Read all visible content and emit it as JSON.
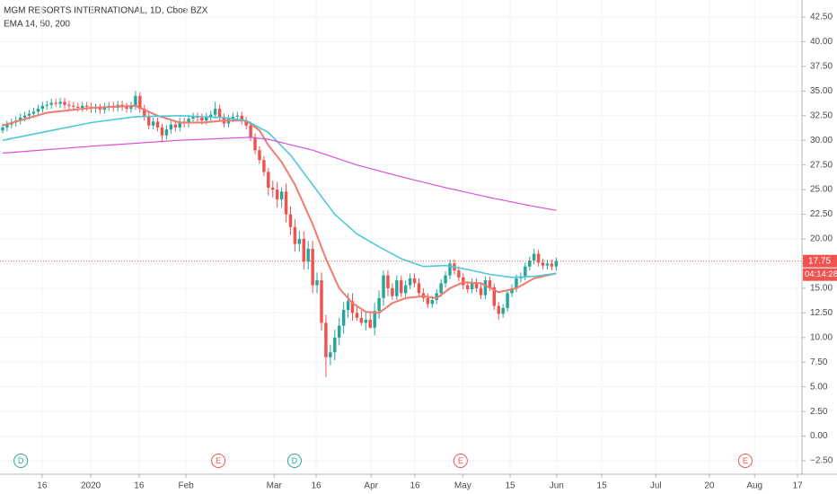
{
  "chart_data": {
    "type": "candlestick",
    "title": "MGM RESORTS INTERNATIONAL, 1D, Cboe BZX",
    "subtitle": "EMA 14, 50, 200",
    "up_color": "#26a69a",
    "down_color": "#ef5350",
    "open": [
      31.0,
      31.3,
      31.6,
      31.8,
      32.0,
      32.3,
      32.5,
      32.7,
      32.9,
      33.2,
      33.5,
      33.6,
      33.8,
      33.7,
      33.9,
      33.6,
      33.5,
      33.4,
      33.3,
      33.5,
      33.4,
      33.2,
      33.3,
      33.1,
      33.4,
      33.5,
      33.3,
      33.6,
      33.4,
      33.2,
      33.5,
      34.5,
      33.2,
      32.4,
      31.5,
      31.9,
      31.3,
      30.5,
      31.1,
      31.6,
      31.3,
      31.9,
      31.7,
      32.2,
      32.4,
      32.3,
      32.0,
      32.4,
      32.6,
      33.2,
      32.3,
      31.7,
      32.2,
      32.4,
      32.5,
      32.0,
      31.5,
      30.3,
      29.0,
      28.0,
      26.8,
      25.2,
      25.0,
      24.0,
      24.8,
      22.5,
      21.2,
      19.5,
      20.0,
      17.7,
      19.0,
      15.3,
      15.8,
      11.5,
      8.0,
      8.5,
      10.0,
      11.2,
      12.8,
      13.7,
      12.5,
      12.0,
      11.5,
      11.8,
      11.0,
      12.7,
      14.0,
      16.3,
      15.0,
      14.2,
      15.8,
      14.5,
      15.3,
      16.0,
      15.5,
      14.5,
      14.0,
      13.4,
      13.8,
      14.5,
      15.5,
      16.3,
      17.5,
      16.8,
      16.1,
      15.3,
      14.9,
      15.6,
      15.0,
      14.3,
      15.8,
      15.1,
      13.2,
      12.4,
      13.0,
      14.5,
      15.0,
      16.0,
      16.2,
      17.2,
      17.8,
      18.5,
      17.6,
      17.3,
      17.5,
      17.2
    ],
    "high": [
      31.7,
      32.0,
      32.2,
      32.4,
      32.7,
      32.9,
      33.1,
      33.3,
      33.6,
      33.9,
      34.0,
      34.2,
      34.2,
      34.3,
      34.3,
      34.0,
      33.9,
      33.8,
      33.9,
      33.9,
      33.8,
      33.7,
      33.7,
      33.8,
      33.9,
      33.9,
      34.0,
      34.0,
      33.8,
      33.9,
      35.0,
      34.9,
      33.6,
      32.8,
      32.3,
      32.3,
      31.7,
      31.5,
      32.0,
      32.0,
      32.3,
      32.3,
      32.6,
      32.8,
      32.8,
      32.7,
      32.8,
      33.0,
      33.9,
      33.6,
      32.7,
      32.6,
      32.8,
      32.9,
      32.9,
      32.4,
      31.9,
      30.7,
      29.4,
      28.4,
      27.2,
      25.9,
      25.8,
      25.2,
      25.6,
      23.3,
      22.0,
      20.8,
      20.8,
      19.8,
      19.8,
      16.6,
      16.6,
      12.3,
      9.3,
      10.8,
      12.0,
      13.6,
      14.5,
      14.5,
      13.3,
      12.8,
      12.6,
      12.6,
      13.5,
      14.8,
      16.8,
      16.8,
      15.5,
      16.3,
      16.3,
      15.8,
      16.5,
      16.5,
      16.0,
      15.0,
      14.5,
      14.2,
      14.9,
      15.9,
      16.7,
      17.9,
      17.9,
      17.2,
      16.5,
      15.7,
      16.0,
      16.0,
      15.4,
      16.2,
      16.2,
      15.5,
      13.6,
      13.4,
      14.9,
      15.4,
      16.4,
      16.6,
      17.6,
      18.2,
      19.0,
      18.9,
      18.0,
      17.9,
      17.9,
      18.1
    ],
    "low": [
      30.7,
      30.9,
      31.2,
      31.4,
      31.6,
      31.9,
      32.1,
      32.3,
      32.5,
      32.8,
      33.1,
      33.2,
      33.4,
      33.3,
      33.2,
      33.1,
      33.0,
      32.9,
      32.9,
      33.0,
      32.8,
      32.8,
      32.7,
      32.7,
      33.0,
      32.9,
      32.9,
      33.0,
      32.8,
      32.8,
      33.1,
      32.8,
      32.0,
      31.1,
      31.1,
      30.9,
      29.8,
      30.1,
      30.7,
      30.9,
      30.9,
      31.3,
      31.3,
      31.8,
      31.9,
      31.6,
      31.6,
      32.0,
      32.2,
      31.9,
      31.3,
      31.3,
      31.8,
      32.0,
      31.6,
      31.1,
      29.9,
      28.6,
      27.6,
      26.4,
      24.4,
      24.2,
      23.2,
      23.2,
      21.7,
      20.4,
      18.7,
      18.7,
      16.9,
      16.9,
      14.5,
      14.5,
      10.7,
      6.0,
      7.2,
      7.7,
      9.2,
      10.4,
      12.0,
      11.7,
      11.7,
      11.2,
      10.7,
      10.9,
      10.2,
      11.9,
      13.2,
      14.2,
      13.8,
      13.8,
      14.1,
      14.1,
      14.9,
      15.1,
      14.1,
      13.6,
      13.0,
      13.0,
      13.4,
      14.1,
      15.1,
      15.9,
      16.4,
      15.7,
      14.9,
      14.5,
      14.5,
      14.6,
      13.9,
      13.9,
      14.7,
      12.8,
      11.8,
      12.0,
      12.6,
      14.1,
      14.6,
      15.6,
      15.8,
      16.8,
      17.4,
      17.2,
      16.9,
      16.9,
      16.8,
      16.8
    ],
    "close": [
      31.3,
      31.6,
      31.8,
      32.0,
      32.3,
      32.5,
      32.7,
      32.9,
      33.2,
      33.5,
      33.6,
      33.8,
      33.7,
      33.9,
      33.6,
      33.5,
      33.4,
      33.3,
      33.5,
      33.4,
      33.2,
      33.3,
      33.1,
      33.4,
      33.5,
      33.3,
      33.6,
      33.4,
      33.2,
      33.5,
      34.5,
      33.2,
      32.4,
      31.5,
      31.9,
      31.3,
      30.5,
      31.1,
      31.6,
      31.3,
      31.9,
      31.7,
      32.2,
      32.4,
      32.3,
      32.0,
      32.4,
      32.6,
      33.2,
      32.3,
      31.7,
      32.2,
      32.4,
      32.5,
      32.0,
      31.5,
      30.3,
      29.0,
      28.0,
      26.8,
      25.2,
      25.0,
      24.0,
      24.8,
      22.5,
      21.2,
      19.5,
      20.0,
      17.7,
      19.0,
      15.3,
      15.8,
      11.5,
      8.0,
      8.5,
      10.0,
      11.2,
      12.8,
      13.7,
      12.5,
      12.0,
      11.5,
      11.8,
      11.0,
      12.7,
      14.0,
      16.3,
      15.0,
      14.2,
      15.8,
      14.5,
      15.3,
      16.0,
      15.5,
      14.5,
      14.0,
      13.4,
      13.8,
      14.5,
      15.5,
      16.3,
      17.5,
      16.8,
      16.1,
      15.3,
      14.9,
      15.6,
      15.0,
      14.3,
      15.8,
      15.1,
      13.2,
      12.4,
      13.0,
      14.5,
      15.0,
      16.0,
      16.2,
      17.2,
      17.8,
      18.5,
      17.6,
      17.3,
      17.5,
      17.2,
      17.75
    ],
    "lines": [
      {
        "color": "#f07b6e",
        "x": [
          0,
          10,
          20,
          30,
          35,
          40,
          45,
          50,
          55,
          58,
          60,
          63,
          66,
          70,
          73,
          76,
          79,
          82,
          85,
          88,
          91,
          95,
          98,
          101,
          104,
          108,
          112,
          116,
          120,
          125
        ],
        "values": [
          31.5,
          32.8,
          33.3,
          33.5,
          32.5,
          31.8,
          31.8,
          32.0,
          32.0,
          31.0,
          29.5,
          27.8,
          25.5,
          21.5,
          18.0,
          15.0,
          13.5,
          12.6,
          12.5,
          13.5,
          14.0,
          14.2,
          14.0,
          15.0,
          15.6,
          15.5,
          14.6,
          15.0,
          16.0,
          16.5
        ]
      },
      {
        "color": "#4fc9d6",
        "x": [
          0,
          10,
          20,
          30,
          40,
          50,
          55,
          60,
          65,
          70,
          75,
          80,
          85,
          90,
          95,
          100,
          105,
          110,
          115,
          120,
          125
        ],
        "values": [
          30.0,
          30.9,
          31.8,
          32.4,
          32.5,
          32.3,
          32.0,
          30.8,
          28.5,
          25.5,
          22.5,
          20.5,
          19.2,
          18.0,
          17.2,
          17.3,
          16.9,
          16.4,
          16.1,
          16.2,
          16.5
        ]
      },
      {
        "color": "#d94fd8",
        "x": [
          0,
          20,
          40,
          56,
          60,
          70,
          80,
          90,
          100,
          110,
          120,
          125
        ],
        "values": [
          28.7,
          29.4,
          30.0,
          30.3,
          30.1,
          29.0,
          27.5,
          26.3,
          25.2,
          24.2,
          23.3,
          22.9
        ]
      }
    ],
    "last_price": 17.75,
    "countdown": "04:14:28",
    "events": [
      {
        "x": 4.1,
        "label": "D",
        "color": "#26a69a"
      },
      {
        "x": 48.7,
        "label": "E",
        "color": "#ef5350"
      },
      {
        "x": 65.9,
        "label": "D",
        "color": "#26a69a"
      },
      {
        "x": 103.4,
        "label": "E",
        "color": "#ef5350"
      },
      {
        "x": 167.7,
        "label": "E",
        "color": "#ef5350"
      }
    ],
    "xlim": [
      -0.6,
      180.5
    ],
    "xticks": [
      {
        "value": 8.9,
        "label": "16"
      },
      {
        "value": 19.9,
        "label": "2020"
      },
      {
        "value": 30.8,
        "label": "16"
      },
      {
        "value": 41.4,
        "label": "Feb"
      },
      {
        "value": 61.3,
        "label": "Mar"
      },
      {
        "value": 70.8,
        "label": "16"
      },
      {
        "value": 83.2,
        "label": "Apr"
      },
      {
        "value": 93.1,
        "label": "16"
      },
      {
        "value": 103.9,
        "label": "May"
      },
      {
        "value": 114.6,
        "label": "15"
      },
      {
        "value": 125.1,
        "label": "Jun"
      },
      {
        "value": 135.3,
        "label": "15"
      },
      {
        "value": 147.5,
        "label": "Jul"
      },
      {
        "value": 159.6,
        "label": "20"
      },
      {
        "value": 169.8,
        "label": "Aug"
      },
      {
        "value": 179.5,
        "label": "17"
      }
    ],
    "ylim": [
      -3.5,
      43.5
    ],
    "yticks": [
      {
        "value": 42.5,
        "label": "42.50"
      },
      {
        "value": 40,
        "label": "40.00"
      },
      {
        "value": 37.5,
        "label": "37.50"
      },
      {
        "value": 35,
        "label": "35.00"
      },
      {
        "value": 32.5,
        "label": "32.50"
      },
      {
        "value": 30,
        "label": "30.00"
      },
      {
        "value": 27.5,
        "label": "27.50"
      },
      {
        "value": 25,
        "label": "25.00"
      },
      {
        "value": 22.5,
        "label": "22.50"
      },
      {
        "value": 20,
        "label": "20.00"
      },
      {
        "value": 17.5,
        "label": "17.50"
      },
      {
        "value": 15,
        "label": "15.00"
      },
      {
        "value": 12.5,
        "label": "12.50"
      },
      {
        "value": 10,
        "label": "10.00"
      },
      {
        "value": 7.5,
        "label": "7.50"
      },
      {
        "value": 5,
        "label": "5.00"
      },
      {
        "value": 2.5,
        "label": "2.50"
      },
      {
        "value": 0,
        "label": "0.00"
      },
      {
        "value": -2.5,
        "label": "−2.50"
      }
    ],
    "grid": true
  }
}
